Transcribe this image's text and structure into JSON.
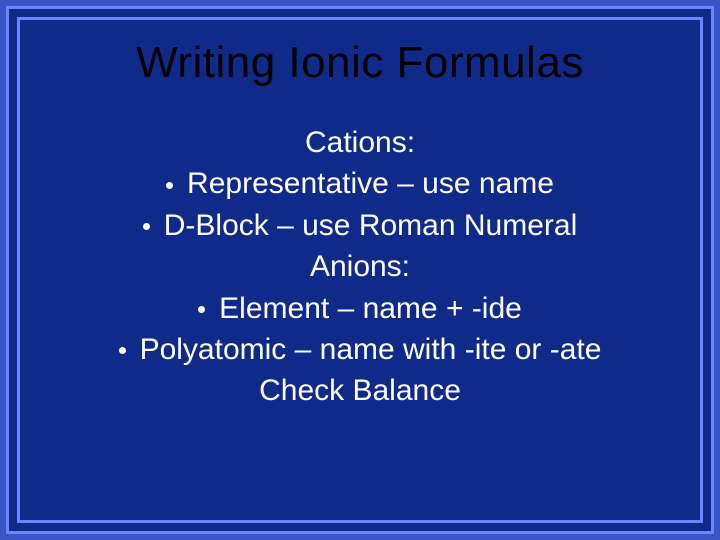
{
  "slide": {
    "background_color": "#102a8a",
    "border_outer_color": "#3a56c4",
    "border_line_color": "#6a86ff",
    "title": {
      "text": "Writing Ionic Formulas",
      "color": "#000000",
      "fontsize_pt": 44
    },
    "body": {
      "text_color": "#ffffff",
      "bullet_color": "#ffffff",
      "fontsize_pt": 30,
      "lines": [
        {
          "type": "plain",
          "text": "Cations:"
        },
        {
          "type": "bullet",
          "text": "Representative – use name"
        },
        {
          "type": "bullet",
          "text": "D-Block – use Roman Numeral"
        },
        {
          "type": "plain",
          "text": "Anions:"
        },
        {
          "type": "bullet",
          "text": "Element – name + -ide"
        },
        {
          "type": "bullet",
          "text": "Polyatomic – name with -ite or -ate"
        },
        {
          "type": "plain",
          "text": "Check Balance"
        }
      ]
    }
  }
}
